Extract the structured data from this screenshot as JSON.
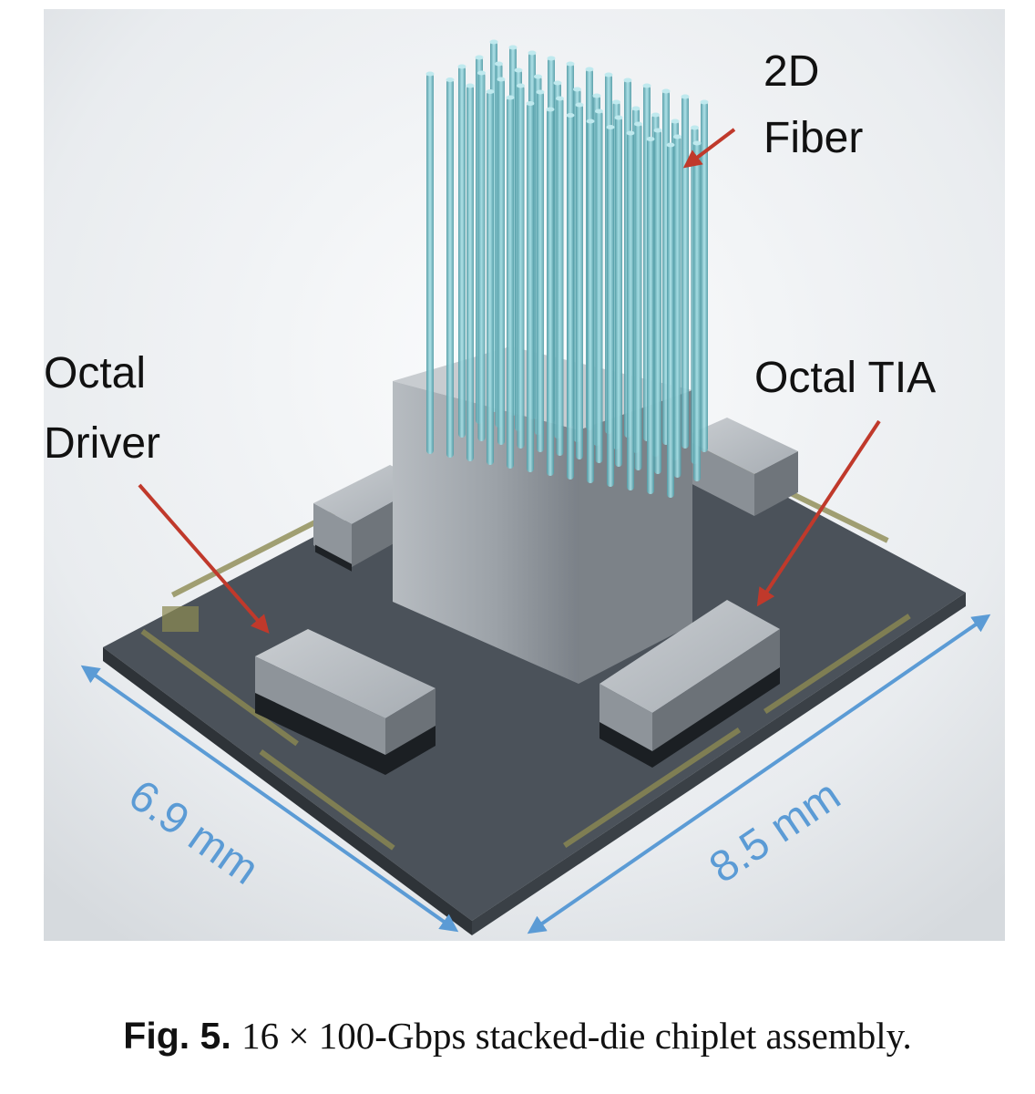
{
  "figure": {
    "labels": {
      "fiber_line1": "2D",
      "fiber_line2": "Fiber",
      "driver_line1": "Octal",
      "driver_line2": "Driver",
      "tia": "Octal TIA",
      "dim_left": "6.9 mm",
      "dim_right": "8.5 mm"
    },
    "colors": {
      "arrow_red": "#c0392b",
      "dimension_blue": "#5b9bd5",
      "fiber_cyan": "#7fc4cc",
      "substrate": "#4b525a",
      "block_grey": "#9aa0a6"
    }
  },
  "caption": {
    "label": "Fig. 5.",
    "text": "16 × 100-Gbps stacked-die chiplet assembly."
  }
}
